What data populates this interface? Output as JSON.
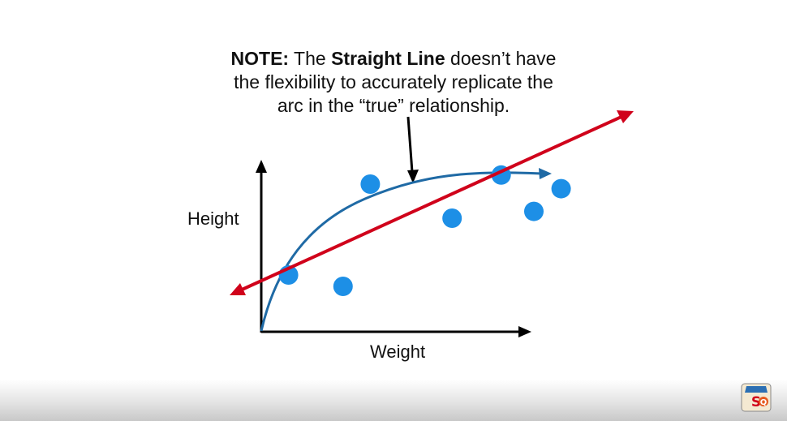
{
  "note": {
    "prefix_bold": "NOTE:",
    "text_1": " The ",
    "highlight_bold": "Straight Line",
    "text_2": " doesn’t have",
    "line_2": "the flexibility to accurately replicate the",
    "line_3": "arc in the “true” relationship."
  },
  "chart_data": {
    "type": "scatter",
    "xlabel": "Weight",
    "ylabel": "Height",
    "points": [
      {
        "x": 0.1,
        "y": 0.25
      },
      {
        "x": 0.3,
        "y": 0.2
      },
      {
        "x": 0.4,
        "y": 0.65
      },
      {
        "x": 0.7,
        "y": 0.5
      },
      {
        "x": 0.88,
        "y": 0.69
      },
      {
        "x": 1.0,
        "y": 0.53
      },
      {
        "x": 1.1,
        "y": 0.63
      }
    ],
    "curve_color": "#1f6aa5",
    "line_color": "#d0021b",
    "point_color": "#1d8fe6"
  },
  "colors": {
    "axis": "#000000",
    "red_line": "#d0021b",
    "blue_curve": "#1f6aa5",
    "points": "#1d8fe6"
  },
  "logo": {
    "icon": "statquest-logo-icon"
  }
}
